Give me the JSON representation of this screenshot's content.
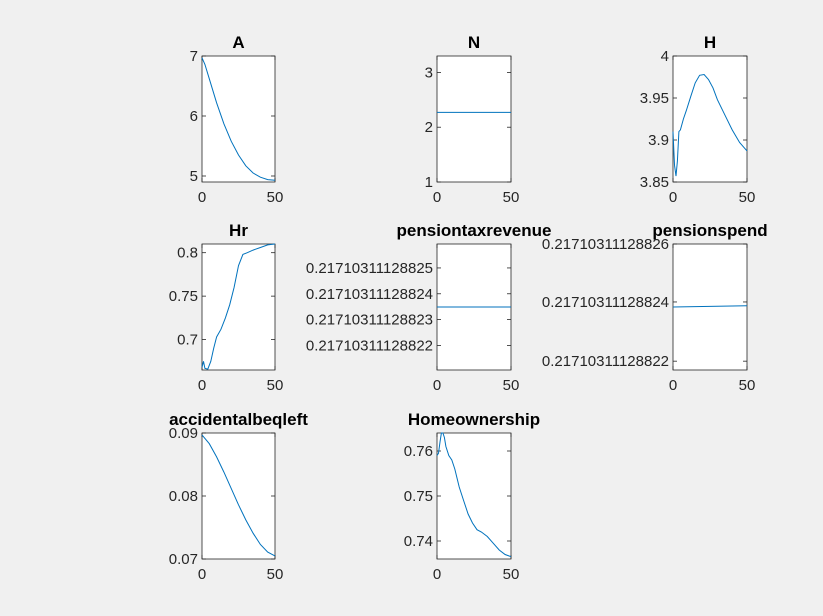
{
  "chart_data": [
    {
      "type": "line",
      "title": "A",
      "xlim": [
        0,
        50
      ],
      "ylim": [
        4.9,
        7.0
      ],
      "xticks": [
        "0",
        "50"
      ],
      "yticks": [
        "5",
        "6",
        "7"
      ],
      "ytick_values": [
        5,
        6,
        7
      ],
      "x": [
        0,
        2,
        5,
        10,
        15,
        20,
        25,
        30,
        35,
        40,
        45,
        50
      ],
      "values": [
        6.97,
        6.86,
        6.62,
        6.22,
        5.87,
        5.58,
        5.35,
        5.17,
        5.05,
        4.98,
        4.94,
        4.93
      ]
    },
    {
      "type": "line",
      "title": "N",
      "xlim": [
        0,
        50
      ],
      "ylim": [
        1,
        3.3
      ],
      "xticks": [
        "0",
        "50"
      ],
      "yticks": [
        "1",
        "2",
        "3"
      ],
      "ytick_values": [
        1,
        2,
        3
      ],
      "x": [
        0,
        50
      ],
      "values": [
        2.27,
        2.27
      ]
    },
    {
      "type": "line",
      "title": "H",
      "xlim": [
        0,
        50
      ],
      "ylim": [
        3.85,
        4.0
      ],
      "xticks": [
        "0",
        "50"
      ],
      "yticks": [
        "3.85",
        "3.9",
        "3.95",
        "4"
      ],
      "ytick_values": [
        3.85,
        3.9,
        3.95,
        4.0
      ],
      "x": [
        0,
        1,
        2,
        3,
        4,
        5,
        7,
        9,
        12,
        15,
        18,
        21,
        24,
        27,
        30,
        35,
        40,
        45,
        50
      ],
      "values": [
        3.91,
        3.87,
        3.857,
        3.875,
        3.91,
        3.912,
        3.925,
        3.935,
        3.952,
        3.968,
        3.977,
        3.978,
        3.972,
        3.962,
        3.948,
        3.93,
        3.912,
        3.897,
        3.887
      ]
    },
    {
      "type": "line",
      "title": "Hr",
      "xlim": [
        0,
        50
      ],
      "ylim": [
        0.665,
        0.81
      ],
      "xticks": [
        "0",
        "50"
      ],
      "yticks": [
        "0.7",
        "0.75",
        "0.8"
      ],
      "ytick_values": [
        0.7,
        0.75,
        0.8
      ],
      "x": [
        0,
        1,
        2,
        4,
        6,
        8,
        10,
        13,
        16,
        19,
        22,
        25,
        28,
        31,
        35,
        40,
        45,
        50
      ],
      "values": [
        0.668,
        0.675,
        0.667,
        0.666,
        0.675,
        0.69,
        0.703,
        0.712,
        0.725,
        0.74,
        0.76,
        0.785,
        0.798,
        0.8,
        0.803,
        0.806,
        0.809,
        0.81
      ]
    },
    {
      "type": "line",
      "title": "pensiontaxrevenue",
      "xlim": [
        0,
        50
      ],
      "ylim": [
        0,
        1
      ],
      "xticks": [
        "0",
        "50"
      ],
      "yticks": [
        "0.21710311128825",
        "0.21710311128824",
        "0.21710311128823",
        "0.21710311128822"
      ],
      "ytick_values": [
        0.81,
        0.605,
        0.4,
        0.195
      ],
      "x": [
        0,
        50
      ],
      "values": [
        0.5,
        0.5
      ]
    },
    {
      "type": "line",
      "title": "pensionspend",
      "xlim": [
        0,
        50
      ],
      "ylim": [
        0,
        1
      ],
      "xticks": [
        "0",
        "50"
      ],
      "yticks": [
        "0.21710311128826",
        "0.21710311128824",
        "0.21710311128822"
      ],
      "ytick_values": [
        1.0,
        0.54,
        0.07
      ],
      "x": [
        0,
        50
      ],
      "values": [
        0.5,
        0.51
      ]
    },
    {
      "type": "line",
      "title": "accidentalbeqleft",
      "xlim": [
        0,
        50
      ],
      "ylim": [
        0.07,
        0.09
      ],
      "xticks": [
        "0",
        "50"
      ],
      "yticks": [
        "0.07",
        "0.08",
        "0.09"
      ],
      "ytick_values": [
        0.07,
        0.08,
        0.09
      ],
      "x": [
        0,
        5,
        10,
        15,
        20,
        25,
        30,
        35,
        40,
        45,
        50
      ],
      "values": [
        0.0897,
        0.0883,
        0.0862,
        0.0838,
        0.0812,
        0.0786,
        0.0762,
        0.0741,
        0.0723,
        0.0711,
        0.0705
      ]
    },
    {
      "type": "line",
      "title": "Homeownership",
      "xlim": [
        0,
        50
      ],
      "ylim": [
        0.736,
        0.764
      ],
      "xticks": [
        "0",
        "50"
      ],
      "yticks": [
        "0.74",
        "0.75",
        "0.76"
      ],
      "ytick_values": [
        0.74,
        0.75,
        0.76
      ],
      "x": [
        0,
        1,
        2,
        3,
        4,
        5,
        6,
        8,
        10,
        12,
        15,
        18,
        21,
        24,
        27,
        30,
        34,
        38,
        42,
        46,
        50
      ],
      "values": [
        0.759,
        0.7595,
        0.762,
        0.764,
        0.764,
        0.763,
        0.761,
        0.759,
        0.758,
        0.756,
        0.752,
        0.749,
        0.746,
        0.744,
        0.7425,
        0.742,
        0.741,
        0.7395,
        0.738,
        0.737,
        0.7365
      ]
    }
  ],
  "style": {
    "line_color": "#0072bd",
    "figure_bg": "#f0f0f0",
    "axes_bg": "#ffffff"
  }
}
